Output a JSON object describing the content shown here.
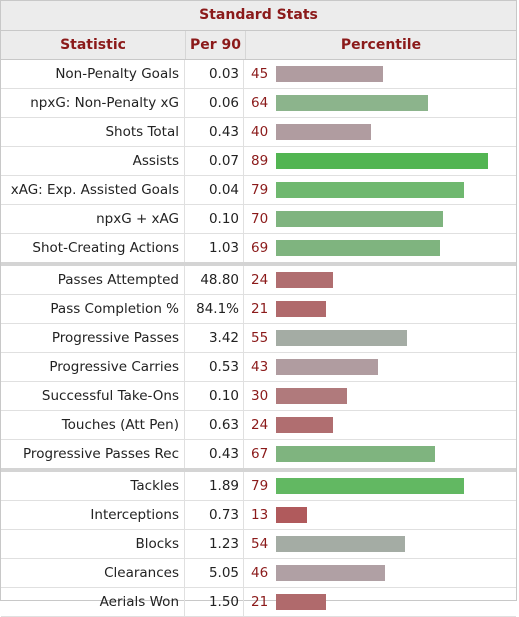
{
  "title": "Standard Stats",
  "headers": {
    "statistic": "Statistic",
    "per90": "Per 90",
    "percentile": "Percentile"
  },
  "colors": {
    "high": "#52b552",
    "good": "#8cb48c",
    "mid": "#a4aca4",
    "fair": "#b09ca0",
    "low": "#b06e70",
    "accent": "#8b1a1a"
  },
  "rows": [
    {
      "stat": "Non-Penalty Goals",
      "per90": "0.03",
      "percentile": 45,
      "color": "#b09ca0"
    },
    {
      "stat": "npxG: Non-Penalty xG",
      "per90": "0.06",
      "percentile": 64,
      "color": "#8cb48c"
    },
    {
      "stat": "Shots Total",
      "per90": "0.43",
      "percentile": 40,
      "color": "#b09ca0"
    },
    {
      "stat": "Assists",
      "per90": "0.07",
      "percentile": 89,
      "color": "#52b552"
    },
    {
      "stat": "xAG: Exp. Assisted Goals",
      "per90": "0.04",
      "percentile": 79,
      "color": "#6fb86f"
    },
    {
      "stat": "npxG + xAG",
      "per90": "0.10",
      "percentile": 70,
      "color": "#7fb47f"
    },
    {
      "stat": "Shot-Creating Actions",
      "per90": "1.03",
      "percentile": 69,
      "color": "#7fb47f",
      "group_end": true
    },
    {
      "stat": "Passes Attempted",
      "per90": "48.80",
      "percentile": 24,
      "color": "#b06e70"
    },
    {
      "stat": "Pass Completion %",
      "per90": "84.1%",
      "percentile": 21,
      "color": "#b06a6c"
    },
    {
      "stat": "Progressive Passes",
      "per90": "3.42",
      "percentile": 55,
      "color": "#a4aca4"
    },
    {
      "stat": "Progressive Carries",
      "per90": "0.53",
      "percentile": 43,
      "color": "#b09ca0"
    },
    {
      "stat": "Successful Take-Ons",
      "per90": "0.10",
      "percentile": 30,
      "color": "#b07a7c"
    },
    {
      "stat": "Touches (Att Pen)",
      "per90": "0.63",
      "percentile": 24,
      "color": "#b06e70"
    },
    {
      "stat": "Progressive Passes Rec",
      "per90": "0.43",
      "percentile": 67,
      "color": "#7fb47f",
      "group_end": true
    },
    {
      "stat": "Tackles",
      "per90": "1.89",
      "percentile": 79,
      "color": "#62b862"
    },
    {
      "stat": "Interceptions",
      "per90": "0.73",
      "percentile": 13,
      "color": "#b05a5c"
    },
    {
      "stat": "Blocks",
      "per90": "1.23",
      "percentile": 54,
      "color": "#a4aca4"
    },
    {
      "stat": "Clearances",
      "per90": "5.05",
      "percentile": 46,
      "color": "#b0a0a4"
    },
    {
      "stat": "Aerials Won",
      "per90": "1.50",
      "percentile": 21,
      "color": "#b06a6c"
    }
  ]
}
